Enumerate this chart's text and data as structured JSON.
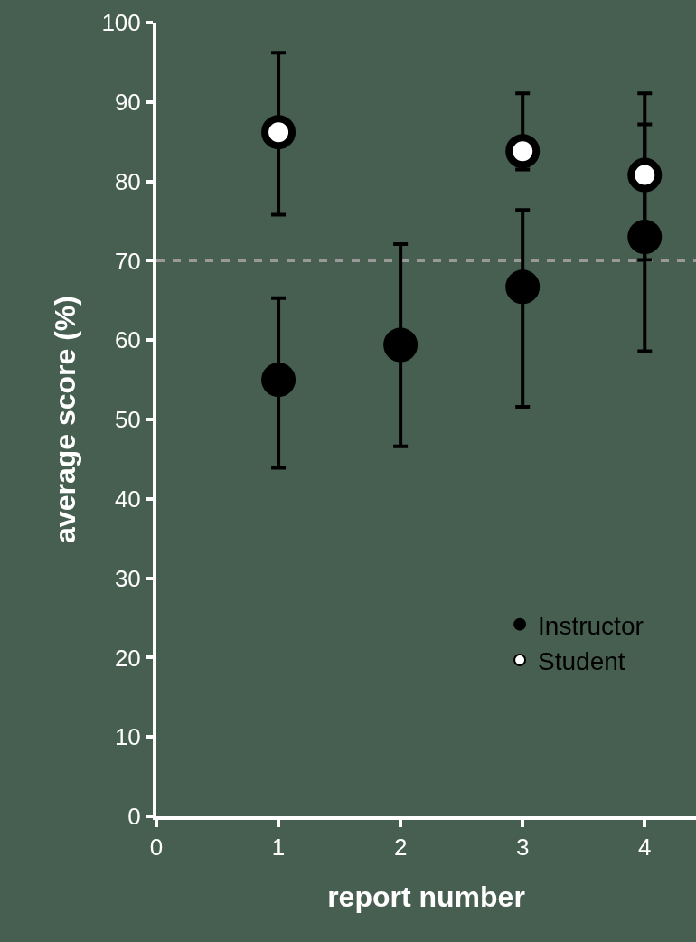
{
  "chart_data": {
    "type": "scatter",
    "xlabel": "report number",
    "ylabel": "average score (%)",
    "x": [
      1,
      2,
      3,
      4
    ],
    "series": [
      {
        "name": "Instructor",
        "color": "#000000",
        "values": [
          55.0,
          59.4,
          66.7,
          73.0
        ],
        "errors": [
          [
            43.9,
            65.3
          ],
          [
            46.6,
            72.1
          ],
          [
            51.6,
            76.4
          ],
          [
            58.6,
            87.2
          ]
        ]
      },
      {
        "name": "Student",
        "color": "#ffffff",
        "values": [
          86.2,
          null,
          83.8,
          80.8
        ],
        "errors": [
          [
            75.8,
            96.2
          ],
          null,
          [
            81.5,
            91.1
          ],
          [
            70.1,
            91.1
          ]
        ]
      }
    ],
    "xlim": [
      0,
      4.42
    ],
    "xticks": [
      0,
      1,
      2,
      3,
      4
    ],
    "ylim": [
      0,
      100
    ],
    "yticks": [
      0,
      10,
      20,
      30,
      40,
      50,
      60,
      70,
      80,
      90,
      100
    ],
    "ref_lines": [
      {
        "axis": "y",
        "value": 70,
        "color": "#999999",
        "line_style": "dashed"
      }
    ],
    "grid": false,
    "legend": "bottom right",
    "marker": "circle"
  }
}
